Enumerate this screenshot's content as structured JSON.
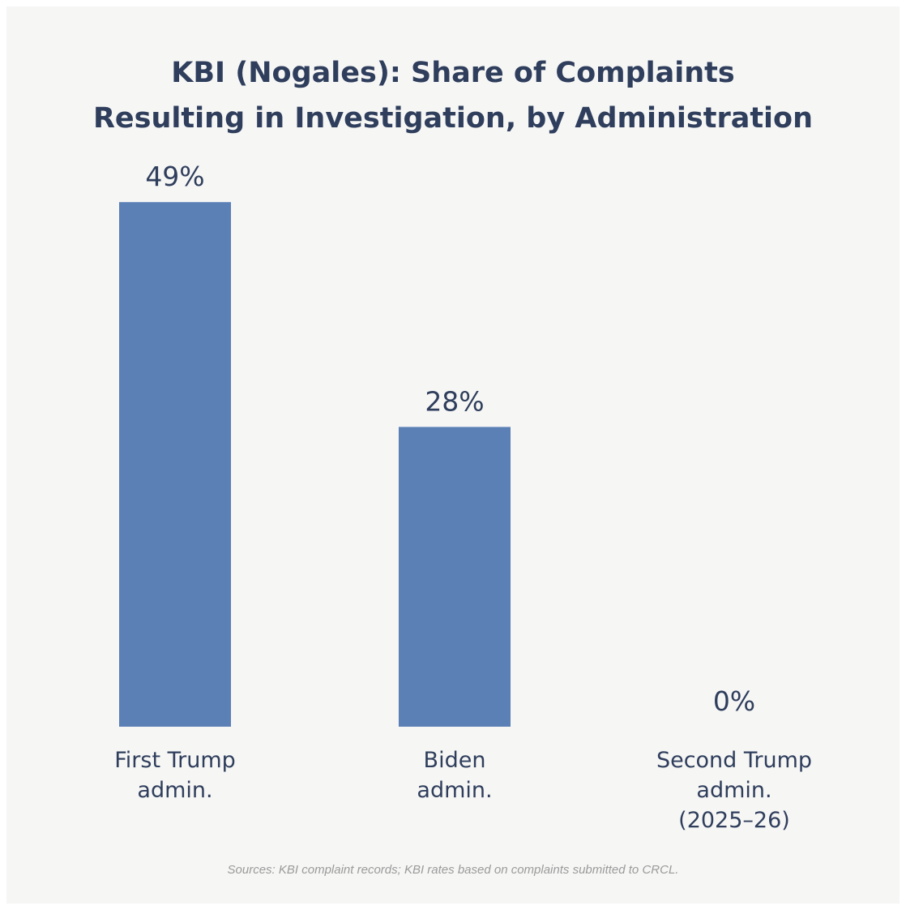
{
  "chart_data": {
    "type": "bar",
    "title_lines": [
      "KBI (Nogales): Share of Complaints",
      "Resulting in Investigation, by Administration"
    ],
    "categories": [
      [
        "First Trump",
        "admin."
      ],
      [
        "Biden",
        "admin."
      ],
      [
        "Second Trump",
        "admin.",
        "(2025–26)"
      ]
    ],
    "values": [
      49,
      28,
      0
    ],
    "value_labels": [
      "49%",
      "28%",
      "0%"
    ],
    "unit": "%",
    "bar_color": "#5b80b5",
    "grid": false,
    "legend": "none"
  },
  "source_note": "Sources: KBI complaint records; KBI rates based on complaints submitted to CRCL."
}
